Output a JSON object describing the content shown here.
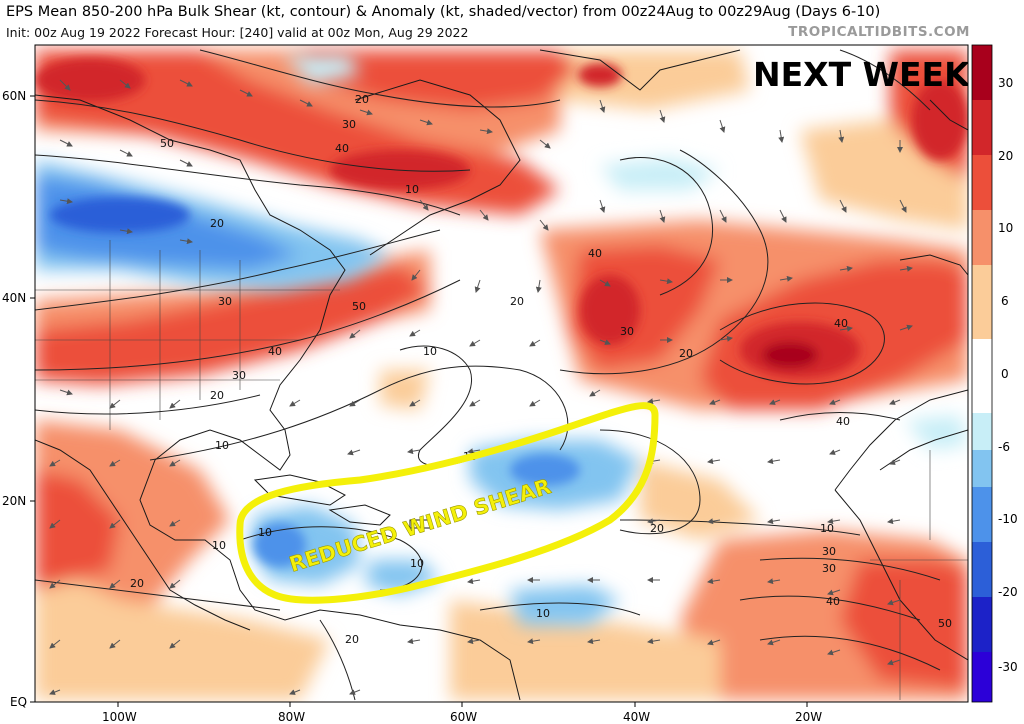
{
  "header": {
    "title": "EPS Mean 850-200 hPa Bulk Shear (kt, contour) & Anomaly (kt, shaded/vector) from 00z24Aug to 00z29Aug (Days 6-10)",
    "subtitle": "Init: 00z Aug 19 2022   Forecast Hour: [240]   valid at 00z Mon, Aug 29 2022",
    "credit": "TROPICALTIDBITS.COM"
  },
  "map": {
    "region": "North Atlantic",
    "overlay_title": "NEXT WEEK",
    "annotation": "REDUCED WIND SHEAR",
    "annotation_color": "#f4f00a",
    "lat_labels": [
      "60N",
      "40N",
      "20N",
      "EQ"
    ],
    "lon_labels": [
      "100W",
      "80W",
      "60W",
      "40W",
      "20W"
    ],
    "contour_labels": [
      "20",
      "30",
      "40",
      "50",
      "10",
      "20",
      "30",
      "40",
      "50",
      "10",
      "20",
      "30",
      "40",
      "10",
      "20",
      "10",
      "20",
      "30",
      "40",
      "10",
      "20",
      "30",
      "40",
      "50",
      "10",
      "20",
      "30",
      "40",
      "20",
      "10",
      "10",
      "10"
    ]
  },
  "colorbar": {
    "labels": [
      "30",
      "20",
      "10",
      "6",
      "0",
      "-6",
      "-10",
      "-20",
      "-30"
    ],
    "colors": [
      "#a8001c",
      "#d2262a",
      "#ec4f3a",
      "#f6906a",
      "#fbcc99",
      "#ffffff",
      "#c8eef7",
      "#82c4f0",
      "#4d92ea",
      "#2c5fd8",
      "#1c22c8",
      "#2c00d8"
    ]
  }
}
